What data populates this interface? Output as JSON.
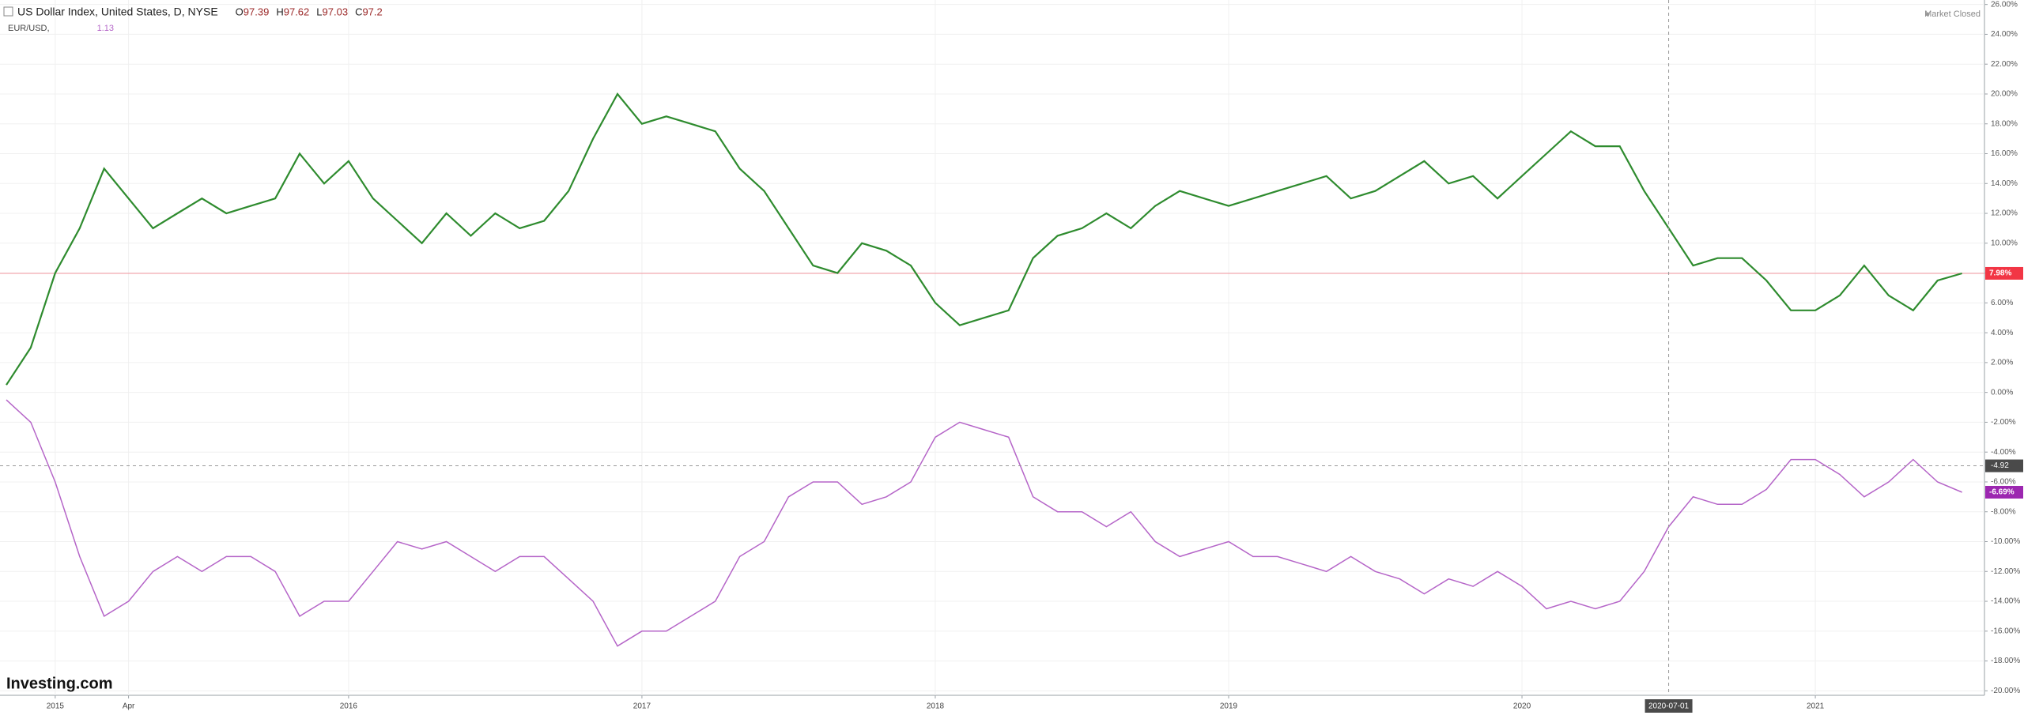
{
  "chart_data": {
    "type": "line",
    "header": {
      "title": "US Dollar Index, United States, D, NYSE",
      "ohlc": [
        {
          "label": "O",
          "value": 97.39
        },
        {
          "label": "H",
          "value": 97.62
        },
        {
          "label": "L",
          "value": 97.03
        },
        {
          "label": "C",
          "value": 97.2
        }
      ],
      "market_status": "Market Closed"
    },
    "watermark": "Investing.com",
    "categories": [
      null,
      null,
      "2015",
      null,
      null,
      "Apr",
      null,
      null,
      null,
      null,
      null,
      null,
      null,
      null,
      "2016",
      null,
      null,
      null,
      null,
      null,
      null,
      null,
      null,
      null,
      null,
      null,
      "2017",
      null,
      null,
      null,
      null,
      null,
      null,
      null,
      null,
      null,
      null,
      null,
      "2018",
      null,
      null,
      null,
      null,
      null,
      null,
      null,
      null,
      null,
      null,
      null,
      "2019",
      null,
      null,
      null,
      null,
      null,
      null,
      null,
      null,
      null,
      null,
      null,
      "2020",
      null,
      null,
      null,
      null,
      null,
      "2020-07-01",
      null,
      null,
      null,
      null,
      null,
      "2021",
      null,
      null,
      null,
      null,
      null,
      null
    ],
    "series": [
      {
        "name": "US Dollar Index, United States, D, NYSE",
        "color": "#2e8b2e",
        "values": [
          0.5,
          3,
          8,
          11,
          15,
          13,
          11,
          12,
          13,
          12,
          12.5,
          13,
          16,
          14,
          15.5,
          13,
          11.5,
          10,
          12,
          10.5,
          12,
          11,
          11.5,
          13.5,
          17,
          20,
          18,
          18.5,
          18,
          17.5,
          15,
          13.5,
          11,
          8.5,
          8,
          10,
          9.5,
          8.5,
          6,
          4.5,
          5,
          5.5,
          9,
          10.5,
          11,
          12,
          11,
          12.5,
          13.5,
          13,
          12.5,
          13,
          13.5,
          14,
          14.5,
          13,
          13.5,
          14.5,
          15.5,
          14,
          14.5,
          13,
          14.5,
          16,
          17.5,
          16.5,
          16.5,
          13.5,
          11,
          8.5,
          9,
          9,
          7.5,
          5.5,
          5.5,
          6.5,
          8.5,
          6.5,
          5.5,
          7.5,
          7.98
        ]
      },
      {
        "name": "EUR/USD,",
        "color": "#b565c8",
        "legend_value": 1.13,
        "values": [
          -0.5,
          -2,
          -6,
          -11,
          -15,
          -14,
          -12,
          -11,
          -12,
          -11,
          -11,
          -12,
          -15,
          -14,
          -14,
          -12,
          -10,
          -10.5,
          -10,
          -11,
          -12,
          -11,
          -11,
          -12.5,
          -14,
          -17,
          -16,
          -16,
          -15,
          -14,
          -11,
          -10,
          -7,
          -6,
          -6,
          -7.5,
          -7,
          -6,
          -3,
          -2,
          -2.5,
          -3,
          -7,
          -8,
          -8,
          -9,
          -8,
          -10,
          -11,
          -10.5,
          -10,
          -11,
          -11,
          -11.5,
          -12,
          -11,
          -12,
          -12.5,
          -13.5,
          -12.5,
          -13,
          -12,
          -13,
          -14.5,
          -14,
          -14.5,
          -14,
          -12,
          -9,
          -7,
          -7.5,
          -7.5,
          -6.5,
          -4.5,
          -4.5,
          -5.5,
          -7,
          -6,
          -4.5,
          -6,
          -6.69
        ]
      }
    ],
    "ylim": [
      -20.3,
      26.3
    ],
    "yticks": [
      {
        "value": 26,
        "label": "26.00%"
      },
      {
        "value": 24,
        "label": "24.00%"
      },
      {
        "value": 22,
        "label": "22.00%"
      },
      {
        "value": 20,
        "label": "20.00%"
      },
      {
        "value": 18,
        "label": "18.00%"
      },
      {
        "value": 16,
        "label": "16.00%"
      },
      {
        "value": 14,
        "label": "14.00%"
      },
      {
        "value": 12,
        "label": "12.00%"
      },
      {
        "value": 10,
        "label": "10.00%"
      },
      {
        "value": 8,
        "label": "8.00%"
      },
      {
        "value": 6,
        "label": "6.00%"
      },
      {
        "value": 4,
        "label": "4.00%"
      },
      {
        "value": 2,
        "label": "2.00%"
      },
      {
        "value": 0,
        "label": "0.00%"
      },
      {
        "value": -2,
        "label": "-2.00%"
      },
      {
        "value": -4,
        "label": "-4.00%"
      },
      {
        "value": -6,
        "label": "-6.00%"
      },
      {
        "value": -8,
        "label": "-8.00%"
      },
      {
        "value": -10,
        "label": "-10.00%"
      },
      {
        "value": -12,
        "label": "-12.00%"
      },
      {
        "value": -14,
        "label": "-14.00%"
      },
      {
        "value": -16,
        "label": "-16.00%"
      },
      {
        "value": -18,
        "label": "-18.00%"
      },
      {
        "value": -20,
        "label": "-20.00%"
      }
    ],
    "grid": true,
    "price_lines": [
      {
        "value": 7.98,
        "label": "7.98%",
        "color": "#f23645",
        "series": 0
      },
      {
        "value": -6.69,
        "label": "-6.69%",
        "color": "#9c27b0",
        "series": 1
      }
    ],
    "crosshair": {
      "value": -4.92,
      "label": "-4.92"
    }
  }
}
